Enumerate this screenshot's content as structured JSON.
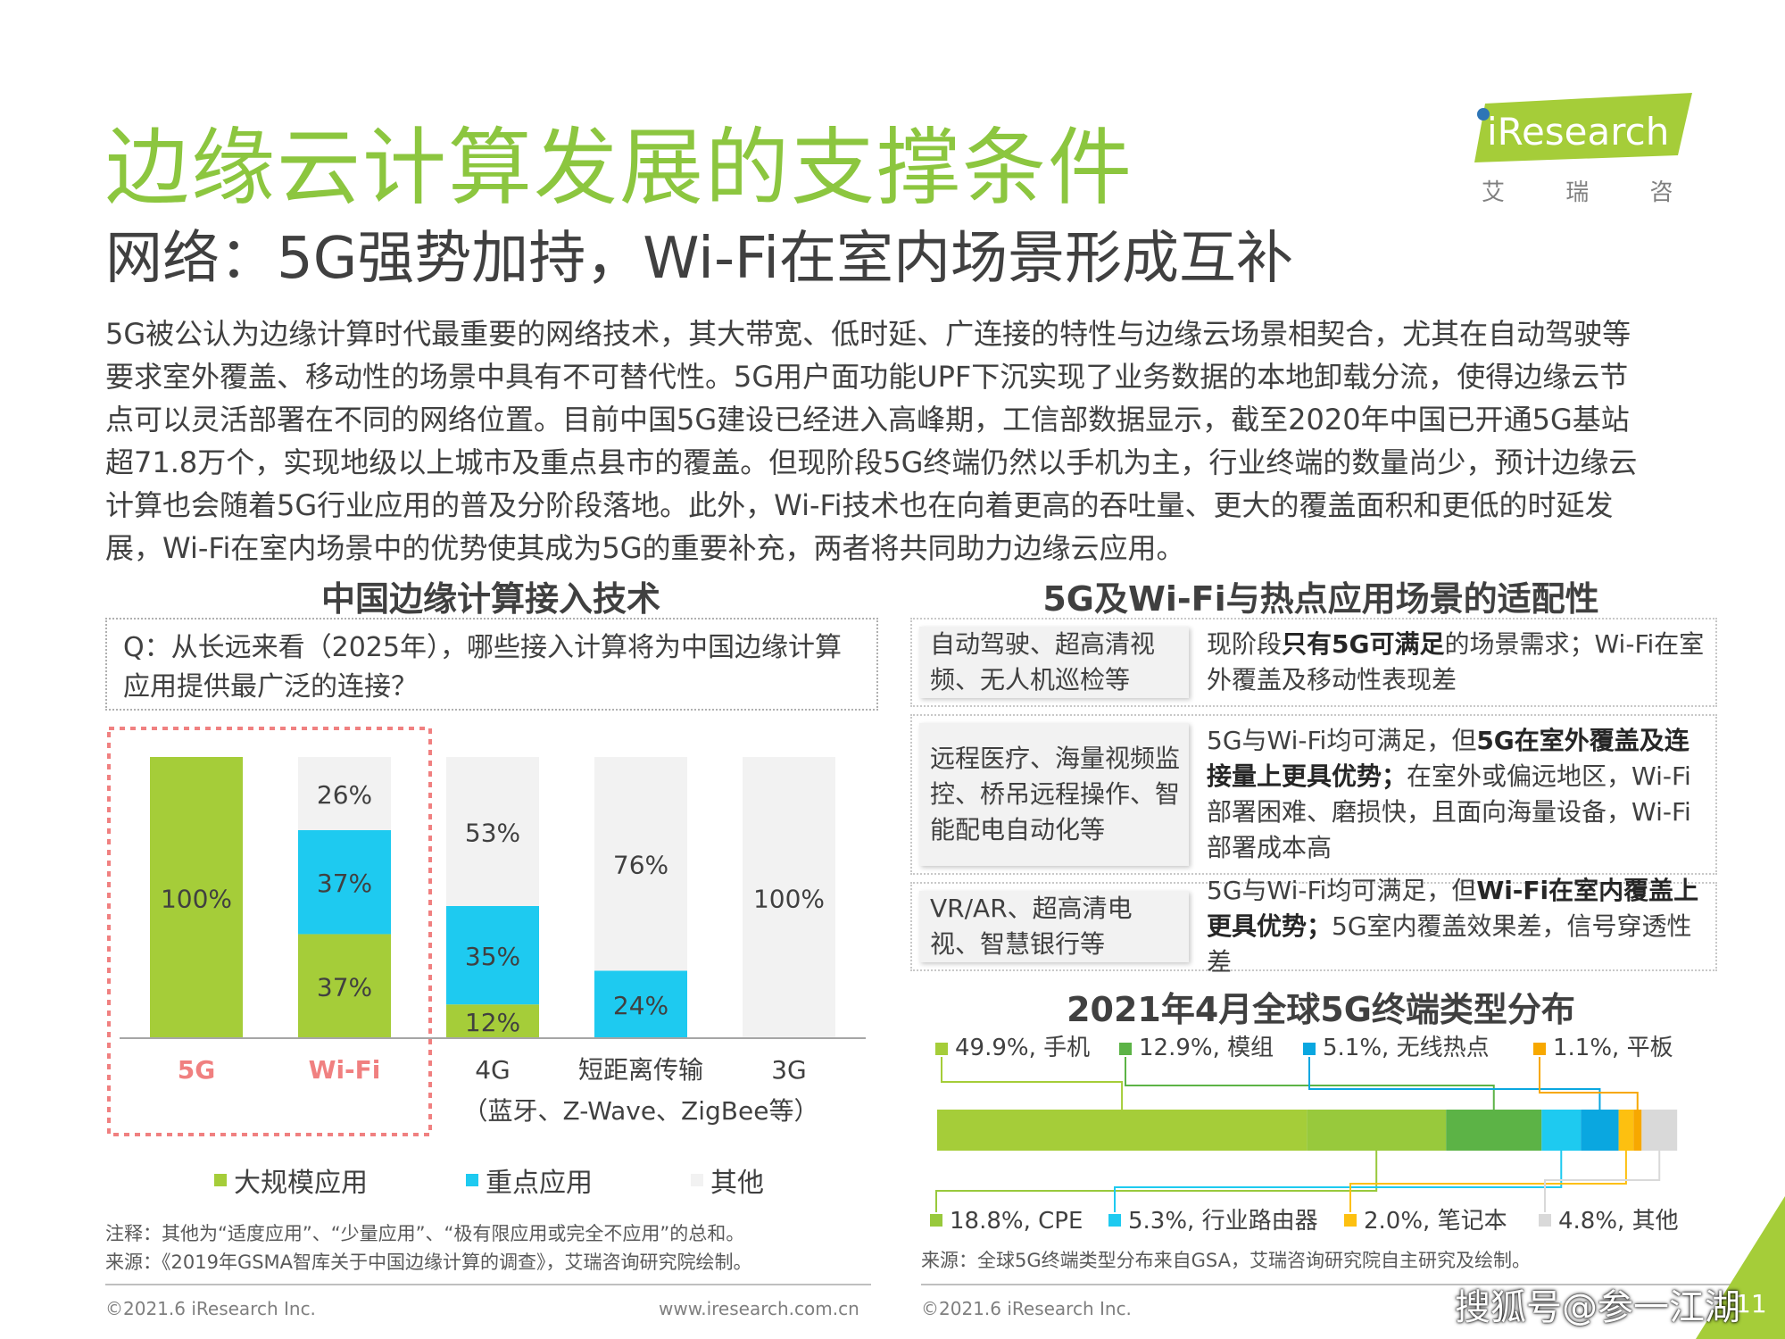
{
  "title": "边缘云计算发展的支撑条件",
  "subtitle": "网络：5G强势加持，Wi-Fi在室内场景形成互补",
  "logo": {
    "word": "iResearch",
    "cn": "艾 瑞 咨 询"
  },
  "intro_lines": [
    "5G被公认为边缘计算时代最重要的网络技术，其大带宽、低时延、广连接的特性与边缘云场景相契合，尤其在自动驾驶等",
    "要求室外覆盖、移动性的场景中具有不可替代性。5G用户面功能UPF下沉实现了业务数据的本地卸载分流，使得边缘云节",
    "点可以灵活部署在不同的网络位置。目前中国5G建设已经进入高峰期，工信部数据显示，截至2020年中国已开通5G基站",
    "超71.8万个，实现地级以上城市及重点县市的覆盖。但现阶段5G终端仍然以手机为主，行业终端的数量尚少，预计边缘云",
    "计算也会随着5G行业应用的普及分阶段落地。此外，Wi-Fi技术也在向着更高的吞吐量、更大的覆盖面积和更低的时延发",
    "展，Wi-Fi在室内场景中的优势使其成为5G的重要补充，两者将共同助力边缘云应用。"
  ],
  "left_section": {
    "title": "中国边缘计算接入技术",
    "question": "Q：从长远来看（2025年），哪些接入计算将为中国边缘计算应用提供最广泛的连接？",
    "legend": [
      {
        "label": "大规模应用",
        "color": "#a5cd39"
      },
      {
        "label": "重点应用",
        "color": "#1ecaf0"
      },
      {
        "label": "其他",
        "color": "#f2f2f2"
      }
    ],
    "note": "注释：其他为“适度应用”、“少量应用”、“极有限应用或完全不应用”的总和。",
    "source": "来源：《2019年GSMA智库关于中国边缘计算的调查》，艾瑞咨询研究院绘制。"
  },
  "chart_data": [
    {
      "type": "bar",
      "stacked": true,
      "categories": [
        "5G",
        "Wi-Fi",
        "4G",
        "短距离传输",
        "3G"
      ],
      "category_sublabel": "（蓝牙、Z-Wave、ZigBee等）",
      "highlighted_categories": [
        "5G",
        "Wi-Fi"
      ],
      "series": [
        {
          "name": "大规模应用",
          "values": [
            100,
            37,
            12,
            0,
            0
          ],
          "color": "#a5cd39"
        },
        {
          "name": "重点应用",
          "values": [
            0,
            37,
            35,
            24,
            0
          ],
          "color": "#1ecaf0"
        },
        {
          "name": "其他",
          "values": [
            0,
            26,
            53,
            76,
            100
          ],
          "color": "#f2f2f2"
        }
      ],
      "ylim": [
        0,
        100
      ],
      "value_format": "%"
    },
    {
      "type": "bar",
      "stacked": true,
      "orientation": "horizontal",
      "title": "2021年4月全球5G终端类型分布",
      "series": [
        {
          "name": "手机",
          "value": 49.9,
          "label": "49.9%, 手机",
          "color": "#a5cd39"
        },
        {
          "name": "CPE",
          "value": 18.8,
          "label": "18.8%, CPE",
          "color": "#98c93c"
        },
        {
          "name": "模组",
          "value": 12.9,
          "label": "12.9%, 模组",
          "color": "#5cb346"
        },
        {
          "name": "行业路由器",
          "value": 5.3,
          "label": "5.3%, 行业路由器",
          "color": "#1ecaf0"
        },
        {
          "name": "无线热点",
          "value": 5.1,
          "label": "5.1%, 无线热点",
          "color": "#0aa7e0"
        },
        {
          "name": "笔记本",
          "value": 2.0,
          "label": "2.0%, 笔记本",
          "color": "#fdc010"
        },
        {
          "name": "平板",
          "value": 1.1,
          "label": "1.1%, 平板",
          "color": "#f7a800"
        },
        {
          "name": "其他",
          "value": 4.8,
          "label": "4.8%, 其他",
          "color": "#d9d9d9"
        }
      ],
      "xlim": [
        0,
        100
      ],
      "source": "来源：全球5G终端类型分布来自GSA，艾瑞咨询研究院自主研究及绘制。"
    }
  ],
  "right_section": {
    "title": "5G及Wi-Fi与热点应用场景的适配性",
    "rows": [
      {
        "label": "自动驾驶、超高清视频、无人机巡检等",
        "desc_parts": [
          {
            "text": "现阶段",
            "bold": false
          },
          {
            "text": "只有5G可满足",
            "bold": true
          },
          {
            "text": "的场景需求；Wi-Fi在室外覆盖及移动性表现差",
            "bold": false
          }
        ]
      },
      {
        "label": "远程医疗、海量视频监控、桥吊远程操作、智能配电自动化等",
        "desc_parts": [
          {
            "text": "5G与Wi-Fi均可满足，但",
            "bold": false
          },
          {
            "text": "5G在室外覆盖及连接量上更具优势；",
            "bold": true
          },
          {
            "text": "在室外或偏远地区，Wi-Fi部署困难、磨损快，且面向海量设备，Wi-Fi部署成本高",
            "bold": false
          }
        ]
      },
      {
        "label": "VR/AR、超高清电视、智慧银行等",
        "desc_parts": [
          {
            "text": "5G与Wi-Fi均可满足，但",
            "bold": false
          },
          {
            "text": "Wi-Fi在室内覆盖上更具优势；",
            "bold": true
          },
          {
            "text": "5G室内覆盖效果差，信号穿透性差",
            "bold": false
          }
        ]
      }
    ]
  },
  "footer": {
    "copyright_left": "©2021.6 iResearch Inc.",
    "url": "www.iresearch.com.cn",
    "copyright_right": "©2021.6 iResearch Inc.",
    "page": "11",
    "watermark": "搜狐号@参一江湖"
  },
  "colors": {
    "title_green": "#8cc63f",
    "highlight_pink": "#f08080"
  }
}
